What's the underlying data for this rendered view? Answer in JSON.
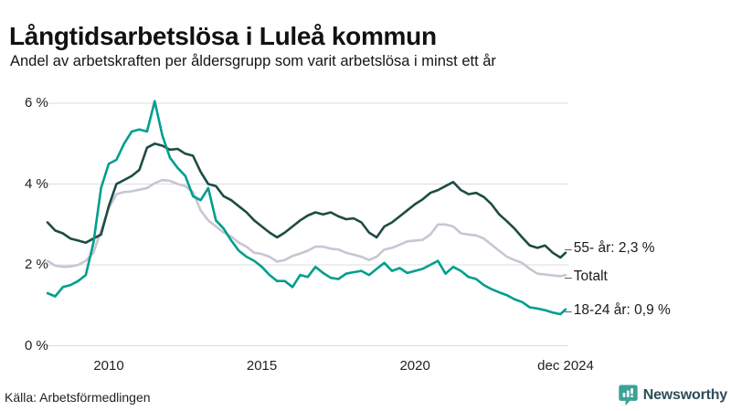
{
  "header": {
    "title": "Långtidsarbetslösa i Luleå kommun",
    "subtitle": "Andel av arbetskraften per åldersgrupp som varit arbetslösa i minst ett år"
  },
  "footer": {
    "source": "Källa: Arbetsförmedlingen",
    "brand": "Newsworthy",
    "brand_icon": "bar-chart-speech-bubble-icon",
    "brand_icon_color": "#38a396",
    "brand_text_color": "#2e4e59"
  },
  "chart_data": {
    "type": "line",
    "unit": "%",
    "xlim": [
      2008.0,
      2024.92
    ],
    "ylim": [
      0,
      6
    ],
    "grid": "horizontal",
    "x": [
      2008.0,
      2008.25,
      2008.5,
      2008.75,
      2009.0,
      2009.25,
      2009.5,
      2009.75,
      2010.0,
      2010.25,
      2010.5,
      2010.75,
      2011.0,
      2011.25,
      2011.5,
      2011.75,
      2012.0,
      2012.25,
      2012.5,
      2012.75,
      2013.0,
      2013.25,
      2013.5,
      2013.75,
      2014.0,
      2014.25,
      2014.5,
      2014.75,
      2015.0,
      2015.25,
      2015.5,
      2015.75,
      2016.0,
      2016.25,
      2016.5,
      2016.75,
      2017.0,
      2017.25,
      2017.5,
      2017.75,
      2018.0,
      2018.25,
      2018.5,
      2018.75,
      2019.0,
      2019.25,
      2019.5,
      2019.75,
      2020.0,
      2020.25,
      2020.5,
      2020.75,
      2021.0,
      2021.25,
      2021.5,
      2021.75,
      2022.0,
      2022.25,
      2022.5,
      2022.75,
      2023.0,
      2023.25,
      2023.5,
      2023.75,
      2024.0,
      2024.25,
      2024.5,
      2024.75,
      2024.92
    ],
    "series": [
      {
        "name": "Totalt",
        "color": "#c9c5d4",
        "values": [
          2.1,
          1.98,
          1.95,
          1.96,
          2.0,
          2.1,
          2.3,
          2.85,
          3.4,
          3.75,
          3.8,
          3.82,
          3.86,
          3.9,
          4.02,
          4.1,
          4.08,
          4.0,
          3.95,
          3.8,
          3.35,
          3.1,
          2.95,
          2.8,
          2.7,
          2.55,
          2.45,
          2.3,
          2.27,
          2.2,
          2.08,
          2.12,
          2.22,
          2.28,
          2.35,
          2.45,
          2.45,
          2.4,
          2.38,
          2.3,
          2.25,
          2.2,
          2.12,
          2.2,
          2.38,
          2.42,
          2.5,
          2.58,
          2.6,
          2.62,
          2.75,
          3.0,
          3.0,
          2.95,
          2.78,
          2.75,
          2.73,
          2.65,
          2.5,
          2.35,
          2.2,
          2.12,
          2.05,
          1.9,
          1.78,
          1.76,
          1.74,
          1.72,
          1.75
        ]
      },
      {
        "name": "55- år",
        "color": "#1e4c44",
        "values": [
          3.05,
          2.85,
          2.78,
          2.65,
          2.6,
          2.55,
          2.65,
          2.75,
          3.45,
          4.0,
          4.1,
          4.2,
          4.35,
          4.9,
          5.0,
          4.95,
          4.85,
          4.87,
          4.75,
          4.7,
          4.3,
          4.0,
          3.95,
          3.7,
          3.6,
          3.45,
          3.3,
          3.1,
          2.95,
          2.8,
          2.68,
          2.8,
          2.95,
          3.1,
          3.22,
          3.3,
          3.25,
          3.3,
          3.2,
          3.13,
          3.15,
          3.05,
          2.8,
          2.68,
          2.95,
          3.05,
          3.2,
          3.35,
          3.5,
          3.62,
          3.78,
          3.85,
          3.95,
          4.05,
          3.85,
          3.75,
          3.78,
          3.68,
          3.5,
          3.25,
          3.08,
          2.9,
          2.68,
          2.48,
          2.42,
          2.48,
          2.3,
          2.18,
          2.3
        ]
      },
      {
        "name": "18-24 år",
        "color": "#009e8e",
        "values": [
          1.3,
          1.22,
          1.45,
          1.5,
          1.6,
          1.75,
          2.55,
          3.9,
          4.5,
          4.6,
          5.0,
          5.3,
          5.35,
          5.3,
          6.05,
          5.2,
          4.65,
          4.4,
          4.2,
          3.7,
          3.6,
          3.9,
          3.1,
          2.9,
          2.6,
          2.35,
          2.2,
          2.1,
          1.95,
          1.75,
          1.6,
          1.6,
          1.45,
          1.75,
          1.7,
          1.95,
          1.8,
          1.68,
          1.65,
          1.78,
          1.82,
          1.85,
          1.75,
          1.9,
          2.05,
          1.85,
          1.92,
          1.8,
          1.85,
          1.9,
          2.0,
          2.1,
          1.78,
          1.95,
          1.85,
          1.7,
          1.65,
          1.5,
          1.4,
          1.32,
          1.25,
          1.15,
          1.08,
          0.95,
          0.92,
          0.88,
          0.82,
          0.78,
          0.9
        ]
      }
    ],
    "yticks": [
      {
        "v": 0,
        "label": "0 %"
      },
      {
        "v": 2,
        "label": "2 %"
      },
      {
        "v": 4,
        "label": "4 %"
      },
      {
        "v": 6,
        "label": "6 %"
      }
    ],
    "xticks": [
      {
        "v": 2010,
        "label": "2010"
      },
      {
        "v": 2015,
        "label": "2015"
      },
      {
        "v": 2020,
        "label": "2020"
      },
      {
        "v": 2024.92,
        "label": "dec 2024"
      }
    ],
    "end_labels": [
      {
        "dash": "–",
        "text": "55- år: 2,3 %",
        "series": "55- år"
      },
      {
        "dash": "–",
        "text": "Totalt",
        "series": "Totalt"
      },
      {
        "dash": "–",
        "text": "18-24 år: 0,9 %",
        "series": "18-24 år"
      }
    ]
  }
}
